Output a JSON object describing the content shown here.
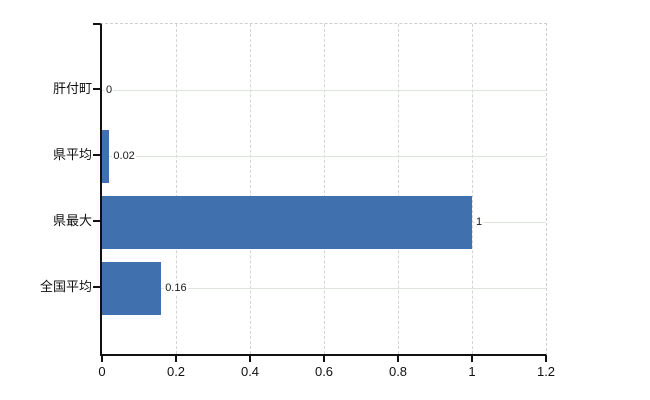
{
  "chart_data": {
    "type": "bar",
    "orientation": "horizontal",
    "title": "",
    "categories": [
      "肝付町",
      "県平均",
      "県最大",
      "全国平均"
    ],
    "values": [
      0,
      0.02,
      1,
      0.16
    ],
    "value_labels": [
      "0",
      "0.02",
      "1",
      "0.16"
    ],
    "xlim": [
      0,
      1.2
    ],
    "x_ticks": [
      0,
      0.2,
      0.4,
      0.6,
      0.8,
      1,
      1.2
    ],
    "x_tick_labels": [
      "0",
      "0.2",
      "0.4",
      "0.6",
      "0.8",
      "1",
      "1.2"
    ],
    "grid": true,
    "legend": false,
    "colors": {
      "bar": "#4170ae",
      "grid_vertical": "#d4d4d4",
      "grid_horizontal": "#dce4dc",
      "border_dashed": "#cfcfcf",
      "axis": "#111111",
      "text": "#1a1a1a"
    }
  }
}
